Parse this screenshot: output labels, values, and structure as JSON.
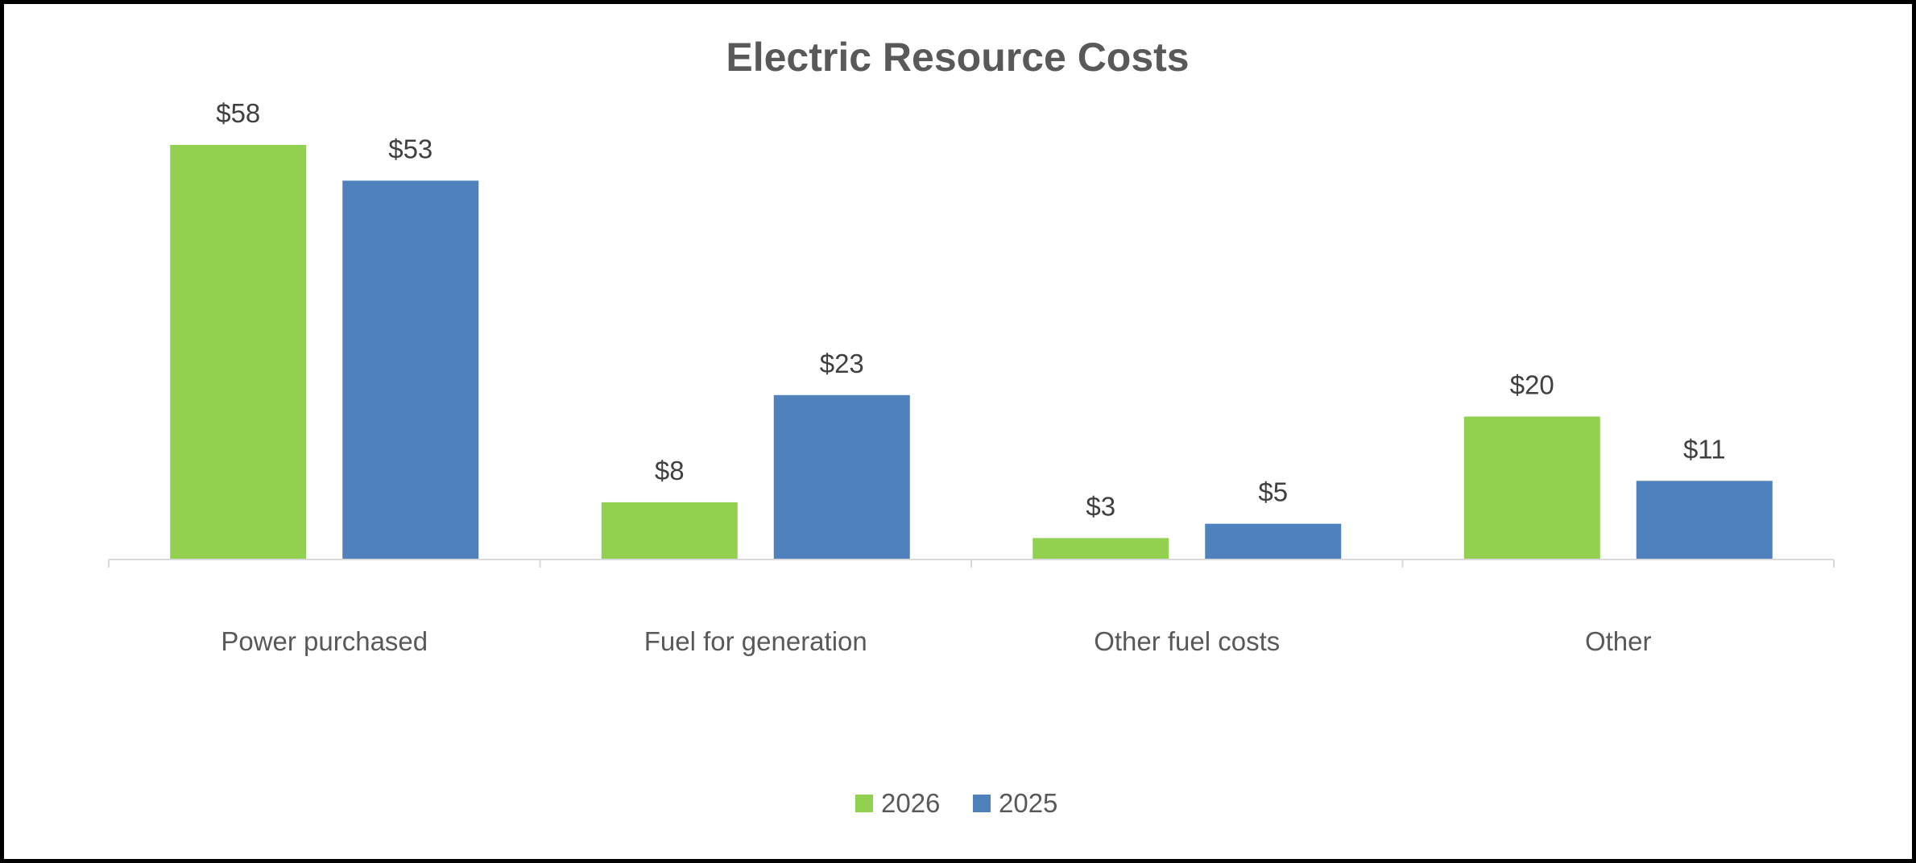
{
  "chart_data": {
    "type": "bar",
    "title": "Electric Resource Costs",
    "categories": [
      "Power purchased",
      "Fuel for generation",
      "Other fuel costs",
      "Other"
    ],
    "series": [
      {
        "name": "2026",
        "color": "#92D050",
        "values": [
          58,
          8,
          3,
          20
        ],
        "labels": [
          "$58",
          "$8",
          "$3",
          "$20"
        ]
      },
      {
        "name": "2025",
        "color": "#4F81BD",
        "values": [
          53,
          23,
          5,
          11
        ],
        "labels": [
          "$53",
          "$23",
          "$5",
          "$11"
        ]
      }
    ],
    "xlabel": "",
    "ylabel": "",
    "ylim": [
      0,
      58
    ],
    "grid": false,
    "legend_position": "bottom",
    "axis_color": "#D9D9D9"
  }
}
